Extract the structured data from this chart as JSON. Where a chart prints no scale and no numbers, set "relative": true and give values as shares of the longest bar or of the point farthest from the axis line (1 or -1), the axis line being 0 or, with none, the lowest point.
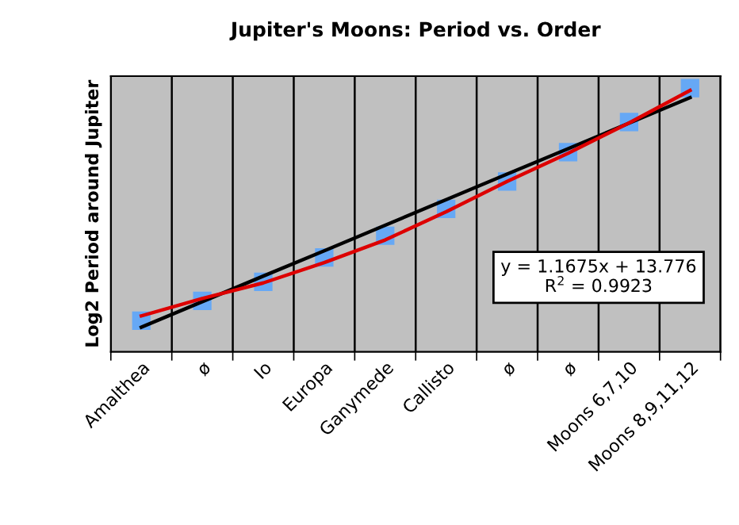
{
  "chart_data": {
    "type": "scatter",
    "title": "Jupiter's Moons: Period vs. Order",
    "ylabel": "Log2 Period around Jupiter",
    "relative": true,
    "grid": "x",
    "legend": false,
    "categories": [
      "Amalthea",
      "ø",
      "Io",
      "Europa",
      "Ganymede",
      "Callisto",
      "ø",
      "ø",
      "Moons 6,7,10",
      "Moons 8,9,11,12"
    ],
    "series": [
      {
        "type": "line",
        "color": "#dd0000",
        "marker": "none",
        "values": [
          0.136,
          0.202,
          0.261,
          0.338,
          0.424,
          0.531,
          0.646,
          0.753,
          0.868,
          0.991
        ]
      },
      {
        "type": "line",
        "color": "#000000",
        "marker": "none",
        "values": [
          0.093,
          0.19,
          0.287,
          0.383,
          0.48,
          0.577,
          0.674,
          0.77,
          0.867,
          0.964
        ]
      },
      {
        "color": "#66a8f5",
        "marker": "square",
        "values": [
          0.118,
          0.193,
          0.265,
          0.358,
          0.44,
          0.542,
          0.646,
          0.757,
          0.871,
          1
        ]
      }
    ],
    "annotations": [
      "y = 1.1675x + 13.776\nR$^{2}$ = 0.9923"
    ]
  }
}
